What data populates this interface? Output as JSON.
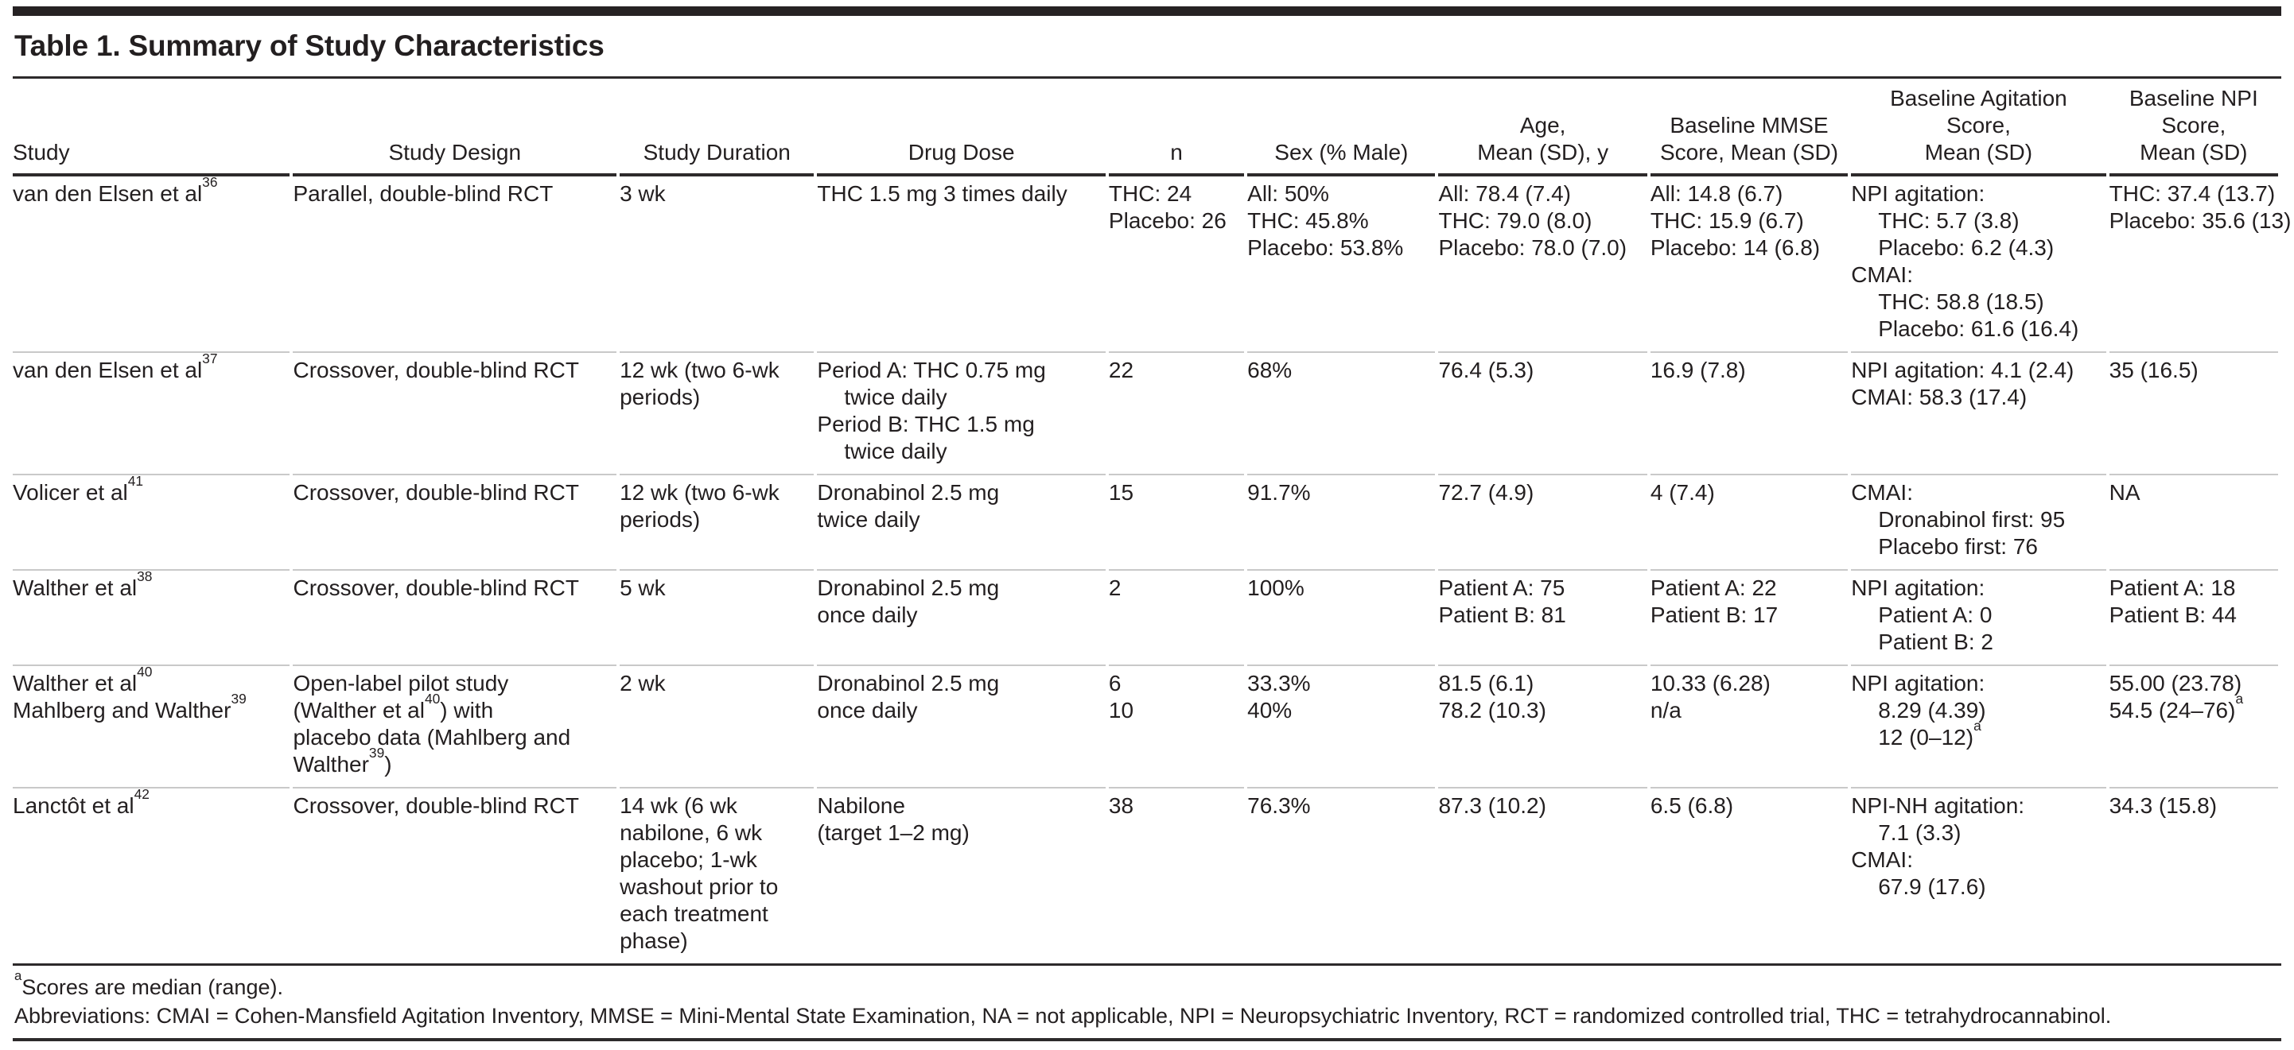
{
  "page": {
    "title": "Table 1. Summary of Study Characteristics"
  },
  "table": {
    "columns": [
      {
        "key": "study",
        "label": "Study"
      },
      {
        "key": "study-design",
        "label": "Study Design"
      },
      {
        "key": "study-duration",
        "label": "Study Duration"
      },
      {
        "key": "drug-dose",
        "label": "Drug Dose"
      },
      {
        "key": "n",
        "label": "n"
      },
      {
        "key": "sex-percent-male",
        "label": "Sex (% Male)"
      },
      {
        "key": "age-mean-sd",
        "label": "Age,\nMean (SD), y"
      },
      {
        "key": "baseline-mmse",
        "label": "Baseline MMSE\nScore, Mean (SD)"
      },
      {
        "key": "baseline-agitation",
        "label": "Baseline Agitation\nScore,\nMean (SD)"
      },
      {
        "key": "baseline-npi",
        "label": "Baseline NPI\nScore,\nMean (SD)"
      }
    ],
    "rows": [
      [
        [
          "van den Elsen et al^{36}"
        ],
        [
          "Parallel, double-blind RCT"
        ],
        [
          "3 wk"
        ],
        [
          "THC 1.5 mg 3 times daily"
        ],
        [
          "THC: 24",
          "Placebo: 26"
        ],
        [
          "All: 50%",
          "THC: 45.8%",
          "Placebo: 53.8%"
        ],
        [
          "All: 78.4 (7.4)",
          "THC: 79.0 (8.0)",
          "Placebo: 78.0 (7.0)"
        ],
        [
          "All: 14.8 (6.7)",
          "THC: 15.9 (6.7)",
          "Placebo: 14 (6.8)"
        ],
        [
          "NPI agitation:",
          {
            "t": "THC: 5.7 (3.8)",
            "i": 1
          },
          {
            "t": "Placebo: 6.2 (4.3)",
            "i": 1
          },
          "CMAI:",
          {
            "t": "THC: 58.8 (18.5)",
            "i": 1
          },
          {
            "t": "Placebo: 61.6 (16.4)",
            "i": 1
          }
        ],
        [
          "THC: 37.4 (13.7)",
          "Placebo: 35.6 (13)"
        ]
      ],
      [
        [
          "van den Elsen et al^{37}"
        ],
        [
          "Crossover, double-blind RCT"
        ],
        [
          "12 wk (two 6-wk",
          "periods)"
        ],
        [
          "Period A: THC 0.75 mg",
          {
            "t": "twice daily",
            "i": 1
          },
          "Period B: THC 1.5 mg",
          {
            "t": "twice daily",
            "i": 1
          }
        ],
        [
          "22"
        ],
        [
          "68%"
        ],
        [
          "76.4 (5.3)"
        ],
        [
          "16.9 (7.8)"
        ],
        [
          "NPI agitation: 4.1 (2.4)",
          "CMAI: 58.3 (17.4)"
        ],
        [
          "35 (16.5)"
        ]
      ],
      [
        [
          "Volicer et al^{41}"
        ],
        [
          "Crossover, double-blind RCT"
        ],
        [
          "12 wk (two 6-wk",
          "periods)"
        ],
        [
          "Dronabinol 2.5 mg",
          "twice daily"
        ],
        [
          "15"
        ],
        [
          "91.7%"
        ],
        [
          "72.7 (4.9)"
        ],
        [
          "4 (7.4)"
        ],
        [
          "CMAI:",
          {
            "t": "Dronabinol first: 95",
            "i": 1
          },
          {
            "t": "Placebo first: 76",
            "i": 1
          }
        ],
        [
          "NA"
        ]
      ],
      [
        [
          "Walther et al^{38}"
        ],
        [
          "Crossover, double-blind RCT"
        ],
        [
          "5 wk"
        ],
        [
          "Dronabinol 2.5 mg",
          "once daily"
        ],
        [
          "2"
        ],
        [
          "100%"
        ],
        [
          "Patient A: 75",
          "Patient B: 81"
        ],
        [
          "Patient A: 22",
          "Patient B: 17"
        ],
        [
          "NPI agitation:",
          {
            "t": "Patient A: 0",
            "i": 1
          },
          {
            "t": "Patient B: 2",
            "i": 1
          }
        ],
        [
          "Patient A: 18",
          "Patient B: 44"
        ]
      ],
      [
        [
          "Walther et al^{40}",
          "Mahlberg and Walther^{39}"
        ],
        [
          "Open-label pilot study",
          "(Walther et al^{40}) with",
          "placebo data (Mahlberg and",
          "Walther^{39})"
        ],
        [
          "2 wk"
        ],
        [
          "Dronabinol 2.5 mg",
          "once daily"
        ],
        [
          "6",
          "10"
        ],
        [
          "33.3%",
          "40%"
        ],
        [
          "81.5 (6.1)",
          "78.2 (10.3)"
        ],
        [
          "10.33 (6.28)",
          "n/a"
        ],
        [
          "NPI agitation:",
          {
            "t": "8.29 (4.39)",
            "i": 1
          },
          {
            "t": "12 (0–12)^{a}",
            "i": 1
          }
        ],
        [
          "55.00 (23.78)",
          "54.5 (24–76)^{a}"
        ]
      ],
      [
        [
          "Lanctôt et al^{42}"
        ],
        [
          "Crossover, double-blind RCT"
        ],
        [
          "14 wk (6 wk",
          "nabilone, 6 wk",
          "placebo; 1-wk",
          "washout prior to",
          "each treatment",
          "phase)"
        ],
        [
          "Nabilone",
          "(target 1–2 mg)"
        ],
        [
          "38"
        ],
        [
          "76.3%"
        ],
        [
          "87.3 (10.2)"
        ],
        [
          "6.5 (6.8)"
        ],
        [
          "NPI-NH agitation:",
          {
            "t": "7.1 (3.3)",
            "i": 1
          },
          "CMAI:",
          {
            "t": "67.9 (17.6)",
            "i": 1
          }
        ],
        [
          "34.3 (15.8)"
        ]
      ]
    ]
  },
  "footnotes": [
    "^{a}Scores are median (range).",
    "Abbreviations: CMAI = Cohen-Mansfield Agitation Inventory, MMSE = Mini-Mental State Examination, NA = not applicable, NPI = Neuropsychiatric Inventory, RCT = randomized controlled trial, THC = tetrahydrocannabinol."
  ],
  "colors": {
    "text": "#231f20",
    "rule_dark": "#2d2a2b",
    "rule_light": "#c9c9c9",
    "top_bar": "#262223",
    "background": "#ffffff"
  }
}
